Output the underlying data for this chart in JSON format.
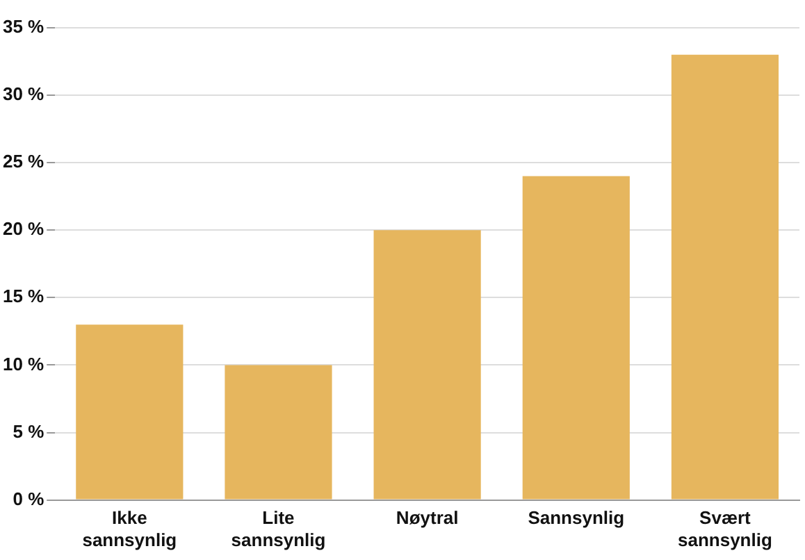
{
  "chart_data": {
    "type": "bar",
    "categories": [
      "Ikke sannsynlig",
      "Lite sannsynlig",
      "Nøytral",
      "Sannsynlig",
      "Svært sannsynlig"
    ],
    "values": [
      13,
      10,
      20,
      24,
      33
    ],
    "color": "#e6b65e",
    "ylim": [
      0,
      35
    ],
    "yticks": [
      {
        "value": 0,
        "label": "0 %"
      },
      {
        "value": 5,
        "label": "5 %"
      },
      {
        "value": 10,
        "label": "10 %"
      },
      {
        "value": 15,
        "label": "15 %"
      },
      {
        "value": 20,
        "label": "20 %"
      },
      {
        "value": 25,
        "label": "25 %"
      },
      {
        "value": 30,
        "label": "30 %"
      },
      {
        "value": 35,
        "label": "35 %"
      }
    ],
    "grid": "y"
  }
}
